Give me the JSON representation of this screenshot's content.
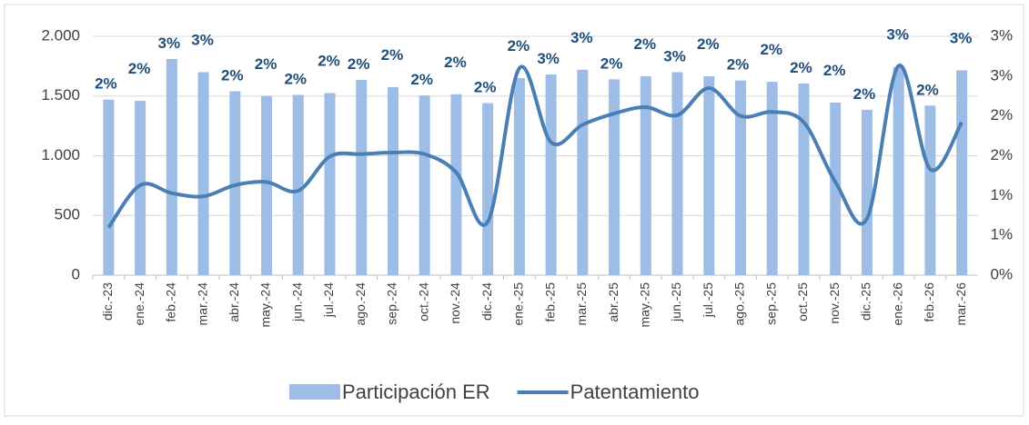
{
  "chart_data": {
    "type": "bar+line",
    "categories": [
      "dic.-23",
      "ene.-24",
      "feb.-24",
      "mar.-24",
      "abr.-24",
      "may.-24",
      "jun.-24",
      "jul.-24",
      "ago.-24",
      "sep.-24",
      "oct.-24",
      "nov.-24",
      "dic.-24",
      "ene.-25",
      "feb.-25",
      "mar.-25",
      "abr.-25",
      "may.-25",
      "jun.-25",
      "jul.-25",
      "ago.-25",
      "sep.-25",
      "oct.-25",
      "nov.-25",
      "dic.-25",
      "ene.-26",
      "feb.-26",
      "mar.-26"
    ],
    "series": [
      {
        "name": "Participación ER",
        "type": "bar",
        "color": "#9dbde6",
        "axis": "y",
        "values": [
          1470,
          1460,
          1810,
          1700,
          1540,
          1500,
          1510,
          1525,
          1635,
          1575,
          1505,
          1515,
          1440,
          1650,
          1680,
          1720,
          1640,
          1665,
          1700,
          1665,
          1630,
          1620,
          1605,
          1445,
          1385,
          1745,
          1420,
          1715
        ]
      },
      {
        "name": "Patentamiento",
        "type": "line",
        "color": "#4a7fb5",
        "axis": "y2",
        "values": [
          0.6,
          1.13,
          1.03,
          0.99,
          1.13,
          1.17,
          1.06,
          1.49,
          1.52,
          1.54,
          1.52,
          1.29,
          0.67,
          2.6,
          1.67,
          1.89,
          2.03,
          2.11,
          2.01,
          2.35,
          2.0,
          2.05,
          1.92,
          1.17,
          0.71,
          2.63,
          1.33,
          1.92
        ]
      }
    ],
    "bar_labels": [
      "2%",
      "2%",
      "3%",
      "3%",
      "2%",
      "2%",
      "2%",
      "2%",
      "2%",
      "2%",
      "2%",
      "2%",
      "2%",
      "2%",
      "3%",
      "3%",
      "2%",
      "2%",
      "3%",
      "2%",
      "2%",
      "2%",
      "2%",
      "2%",
      "2%",
      "3%",
      "2%",
      "3%"
    ],
    "ylim": [
      0,
      2000
    ],
    "yticks": [
      0,
      500,
      {
        "value": 1000,
        "label": "1.000"
      },
      {
        "value": 1500,
        "label": "1.500"
      },
      {
        "value": 2000,
        "label": "2.000"
      }
    ],
    "y2lim": [
      0,
      3
    ],
    "y2ticks": [
      {
        "value": 0,
        "label": "0%"
      },
      {
        "value": 0.5,
        "label": "1%"
      },
      {
        "value": 1,
        "label": "1%"
      },
      {
        "value": 1.5,
        "label": "2%"
      },
      {
        "value": 2,
        "label": "2%"
      },
      {
        "value": 2.5,
        "label": "3%"
      },
      {
        "value": 3,
        "label": "3%"
      }
    ],
    "grid": true,
    "legend": "bottom"
  }
}
